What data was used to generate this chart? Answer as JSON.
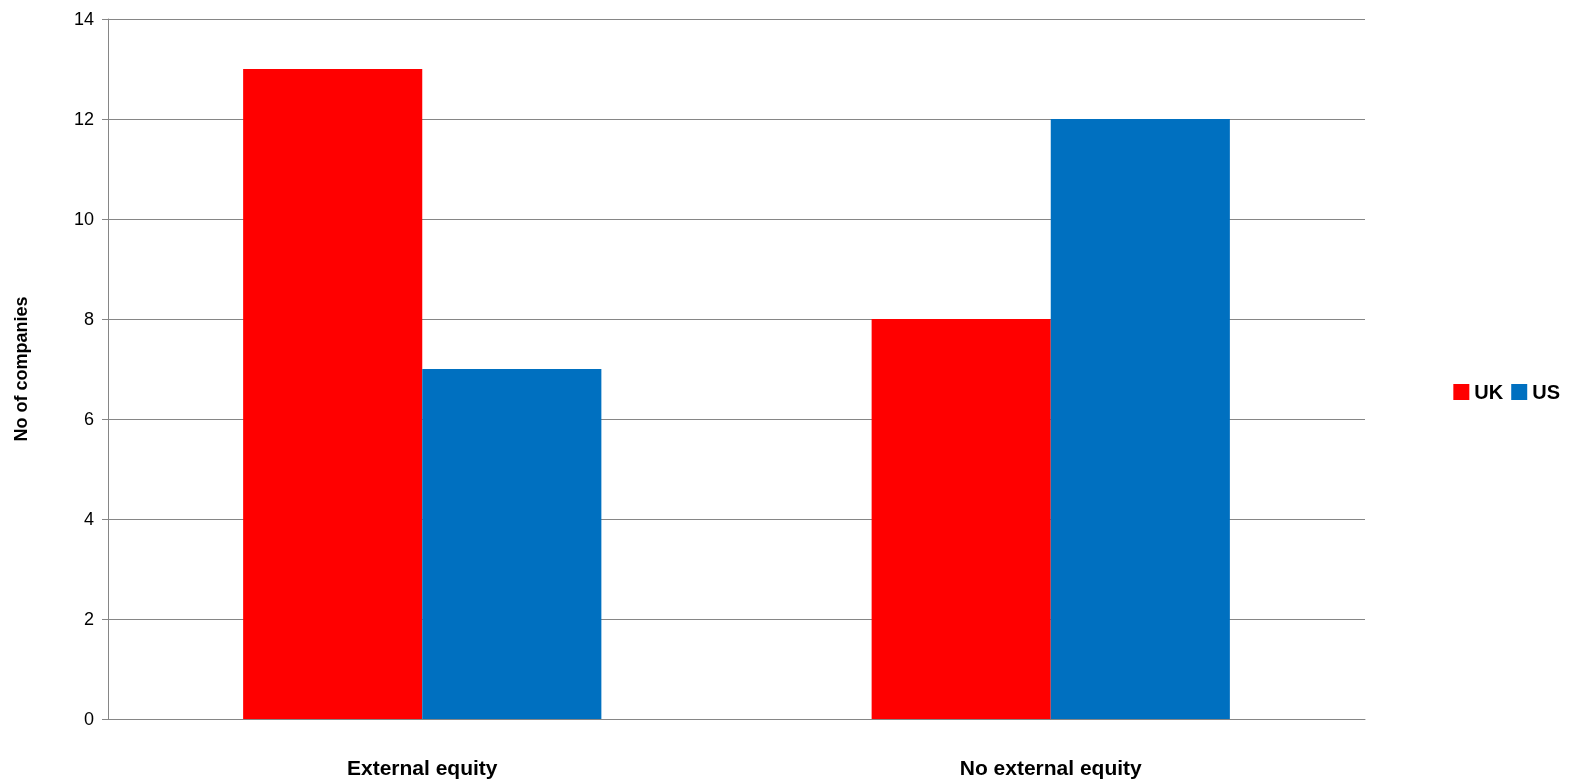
{
  "chart_data": {
    "type": "bar",
    "ylabel": "No of companies",
    "categories": [
      "External equity",
      "No external equity"
    ],
    "series": [
      {
        "name": "UK",
        "color": "#ff0000",
        "values": [
          13,
          8
        ]
      },
      {
        "name": "US",
        "color": "#0070c0",
        "values": [
          7,
          12
        ]
      }
    ],
    "ylim": [
      0,
      14
    ],
    "yticks": [
      0,
      2,
      4,
      6,
      8,
      10,
      12,
      14
    ],
    "grid": "y",
    "legend": "right"
  }
}
